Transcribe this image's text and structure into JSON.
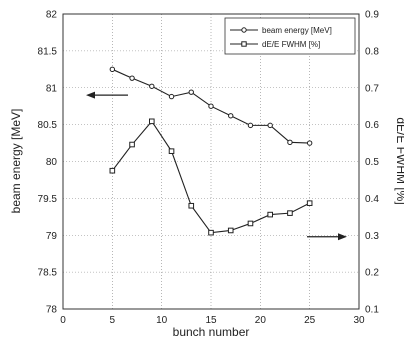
{
  "chart_data": {
    "type": "line",
    "title": "",
    "xlabel": "bunch number",
    "ylabel_left": "beam energy [MeV]",
    "ylabel_right": "dE/E FWHM [%]",
    "xlim": [
      0,
      30
    ],
    "ylim_left": [
      78,
      82
    ],
    "ylim_right": [
      0.1,
      0.9
    ],
    "x_ticks": [
      "0",
      "5",
      "10",
      "15",
      "20",
      "25",
      "30"
    ],
    "y_left_ticks": [
      "78",
      "78.5",
      "79",
      "79.5",
      "80",
      "80.5",
      "81",
      "81.5",
      "82"
    ],
    "y_right_ticks": [
      "0.1",
      "0.2",
      "0.3",
      "0.4",
      "0.5",
      "0.6",
      "0.7",
      "0.8",
      "0.9"
    ],
    "grid": true,
    "legend_position": "top-right",
    "series": [
      {
        "name": "beam energy [MeV]",
        "axis": "left",
        "marker": "circle",
        "x": [
          5,
          7,
          9,
          11,
          13,
          15,
          17,
          19,
          21,
          23,
          25
        ],
        "y": [
          81.25,
          81.13,
          81.02,
          80.88,
          80.94,
          80.75,
          80.62,
          80.49,
          80.49,
          80.26,
          80.25
        ]
      },
      {
        "name": "dE/E FWHM [%]",
        "axis": "right",
        "marker": "square",
        "x": [
          5,
          7,
          9,
          11,
          13,
          15,
          17,
          19,
          21,
          23,
          25
        ],
        "y": [
          0.475,
          0.546,
          0.609,
          0.528,
          0.38,
          0.307,
          0.313,
          0.332,
          0.356,
          0.36,
          0.387
        ]
      }
    ],
    "annotations": [
      {
        "type": "arrow",
        "direction": "left",
        "points_to": "left-axis"
      },
      {
        "type": "arrow",
        "direction": "right",
        "points_to": "right-axis"
      }
    ]
  },
  "colors": {
    "line": "#222222",
    "grid": "#888888",
    "background": "#ffffff"
  }
}
